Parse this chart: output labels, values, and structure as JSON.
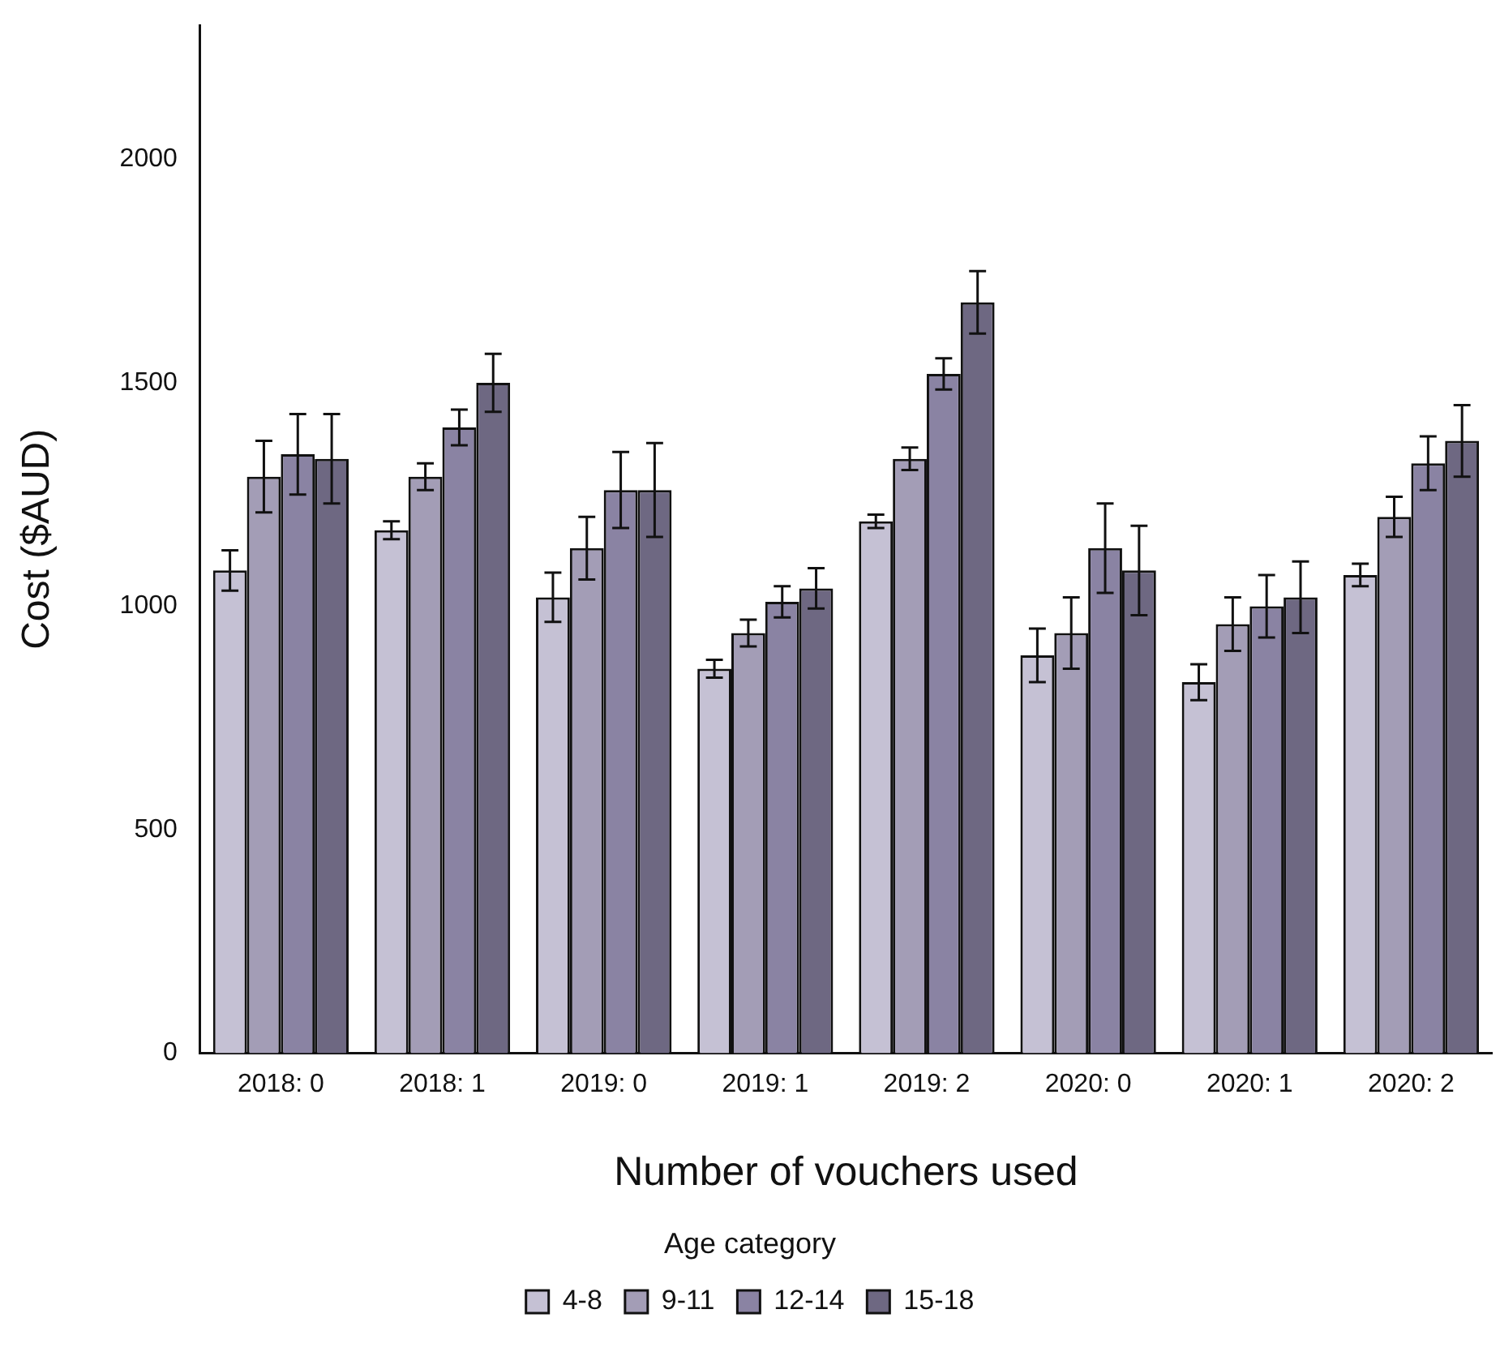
{
  "chart_data": {
    "type": "bar",
    "xlabel": "Number of vouchers used",
    "ylabel": "Cost ($AUD)",
    "legend_title": "Age category",
    "legend": "bottom",
    "grid": false,
    "categories": [
      "2018: 0",
      "2018: 1",
      "2019: 0",
      "2019: 1",
      "2019: 2",
      "2020: 0",
      "2020: 1",
      "2020: 2"
    ],
    "ylim": [
      0,
      2300
    ],
    "yticks": [
      0,
      500,
      1000,
      1500,
      2000
    ],
    "series": [
      {
        "name": "4-8",
        "color": "#c5c1d4",
        "values": [
          1080,
          1170,
          1020,
          860,
          1190,
          890,
          830,
          1070
        ],
        "errors": [
          45,
          20,
          55,
          20,
          15,
          60,
          40,
          25
        ]
      },
      {
        "name": "9-11",
        "color": "#a39db6",
        "values": [
          1290,
          1290,
          1130,
          940,
          1330,
          940,
          960,
          1200
        ],
        "errors": [
          80,
          30,
          70,
          30,
          25,
          80,
          60,
          45
        ]
      },
      {
        "name": "12-14",
        "color": "#8a83a3",
        "values": [
          1340,
          1400,
          1260,
          1010,
          1520,
          1130,
          1000,
          1320
        ],
        "errors": [
          90,
          40,
          85,
          35,
          35,
          100,
          70,
          60
        ]
      },
      {
        "name": "15-18",
        "color": "#6e6882",
        "values": [
          1330,
          1500,
          1260,
          1040,
          1680,
          1080,
          1020,
          1370
        ],
        "errors": [
          100,
          65,
          105,
          45,
          70,
          100,
          80,
          80
        ]
      }
    ]
  }
}
